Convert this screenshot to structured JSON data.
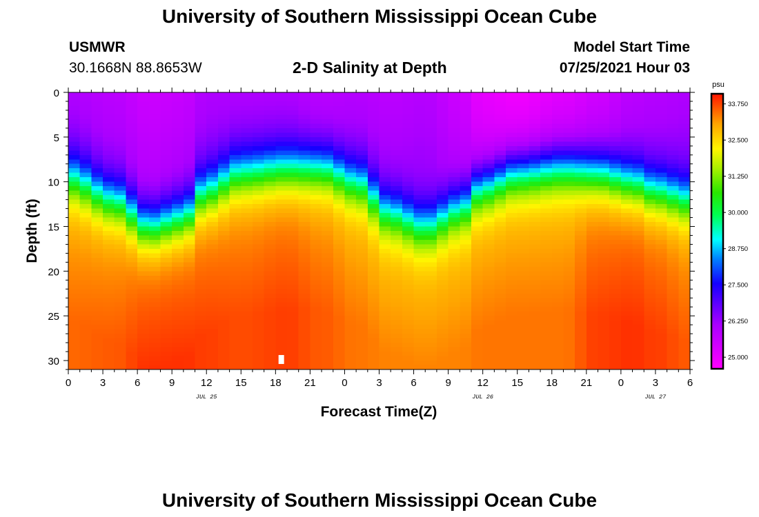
{
  "header": {
    "title": "University of Southern Mississippi Ocean Cube",
    "station": "USMWR",
    "coords": "30.1668N  88.8653W",
    "plot_title": "2-D Salinity at Depth",
    "model_label": "Model Start Time",
    "model_time": "07/25/2021 Hour 03"
  },
  "footer": {
    "title": "University of Southern Mississippi Ocean Cube"
  },
  "chart_data": {
    "type": "heatmap",
    "title": "2-D Salinity at Depth",
    "xlabel": "Forecast Time(Z)",
    "ylabel": "Depth (ft)",
    "x_tick_labels": [
      "0",
      "3",
      "6",
      "9",
      "12",
      "15",
      "18",
      "21",
      "0",
      "3",
      "6",
      "9",
      "12",
      "15",
      "18",
      "21",
      "0",
      "3",
      "6"
    ],
    "x_range_hours": [
      0,
      54
    ],
    "date_labels": [
      {
        "text": "JUL 25",
        "hour": 12
      },
      {
        "text": "JUL 26",
        "hour": 36
      },
      {
        "text": "JUL 27",
        "hour": 51
      }
    ],
    "y_tick_labels": [
      "0",
      "5",
      "10",
      "15",
      "20",
      "25",
      "30"
    ],
    "y_ticks": [
      0,
      5,
      10,
      15,
      20,
      25,
      30
    ],
    "ylim": [
      0,
      31
    ],
    "y_inverted": true,
    "colorbar": {
      "unit": "psu",
      "range": [
        24.6,
        34.1
      ],
      "tick_labels": [
        "33.750",
        "32.500",
        "31.250",
        "30.000",
        "28.750",
        "27.500",
        "26.250",
        "25.000"
      ],
      "tick_values": [
        33.75,
        32.5,
        31.25,
        30.0,
        28.75,
        27.5,
        26.25,
        25.0
      ]
    },
    "field": {
      "description_hours": [
        0,
        4,
        7,
        10,
        12,
        15,
        19,
        22,
        25,
        28,
        31,
        34,
        36,
        39,
        43,
        46,
        49,
        51,
        54
      ],
      "halocline_depth_ft": [
        9.5,
        12,
        15,
        14,
        11,
        9,
        8.5,
        8.5,
        10,
        13.5,
        15,
        13,
        10.5,
        9,
        8.5,
        9,
        10,
        11,
        12
      ],
      "surface_salinity_psu": [
        26.0,
        25.8,
        25.5,
        25.6,
        26.0,
        26.0,
        26.0,
        25.8,
        25.9,
        25.8,
        25.9,
        25.5,
        25.0,
        24.8,
        25.1,
        25.4,
        25.8,
        25.9,
        26.0
      ],
      "bottom_salinity_psu": [
        33.5,
        33.6,
        33.9,
        33.9,
        33.8,
        33.7,
        33.8,
        33.6,
        33.4,
        33.3,
        33.3,
        33.3,
        33.4,
        33.4,
        33.4,
        33.8,
        33.9,
        33.8,
        33.6
      ]
    },
    "marker": {
      "hour": 18.5,
      "depth": 30
    }
  }
}
